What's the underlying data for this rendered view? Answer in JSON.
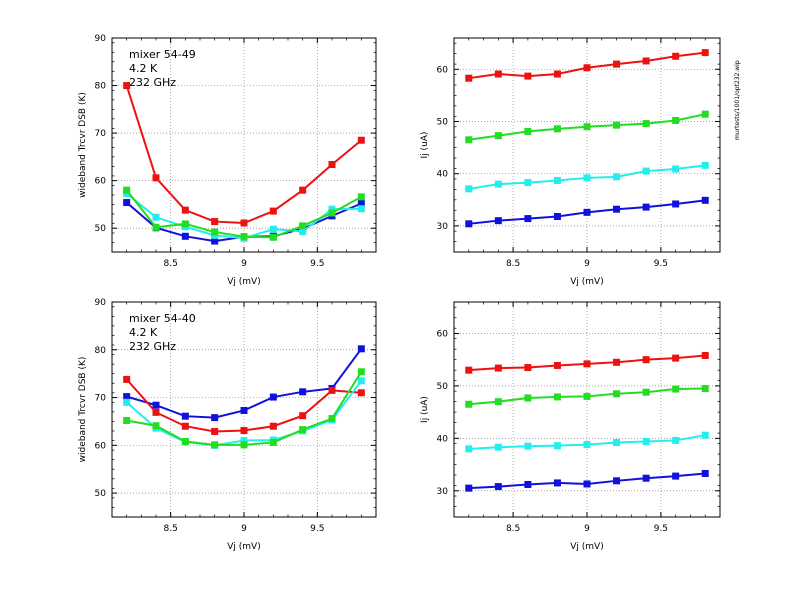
{
  "side_note": "murtests/1001/opt232.wip",
  "colors": {
    "red": "#ee1111",
    "blue": "#1111dd",
    "cyan": "#22eeee",
    "green": "#22dd22"
  },
  "chart_data": [
    {
      "type": "line",
      "annotation": [
        "mixer 54-49",
        "4.2 K",
        "232 GHz"
      ],
      "xlabel": "Vj (mV)",
      "ylabel": "wideband Trcvr DSB (K)",
      "xlim": [
        8.1,
        9.9
      ],
      "ylim": [
        45,
        90
      ],
      "xticks": [
        8.5,
        9,
        9.5
      ],
      "xticklabels": [
        "8.5",
        "9",
        "9.5"
      ],
      "yticks": [
        50,
        60,
        70,
        80,
        90
      ],
      "yticklabels": [
        "50",
        "60",
        "70",
        "80",
        "90"
      ],
      "grid": true,
      "x": [
        8.2,
        8.4,
        8.6,
        8.8,
        9.0,
        9.2,
        9.4,
        9.6,
        9.8
      ],
      "series": [
        {
          "color": "#ee1111",
          "values": [
            80.0,
            60.6,
            53.8,
            51.4,
            51.1,
            53.6,
            58.0,
            63.4,
            68.5
          ]
        },
        {
          "color": "#1111dd",
          "values": [
            55.4,
            50.1,
            48.3,
            47.3,
            48.2,
            48.3,
            49.9,
            52.6,
            55.2
          ]
        },
        {
          "color": "#22eeee",
          "values": [
            57.3,
            52.3,
            50.3,
            48.5,
            47.9,
            49.8,
            49.3,
            54.0,
            54.1
          ]
        },
        {
          "color": "#22dd22",
          "values": [
            58.0,
            50.2,
            50.9,
            49.2,
            48.2,
            48.1,
            50.5,
            53.2,
            56.6
          ]
        }
      ]
    },
    {
      "type": "line",
      "annotation": [],
      "xlabel": "Vj (mV)",
      "ylabel": "Ij (uA)",
      "xlim": [
        8.1,
        9.9
      ],
      "ylim": [
        25,
        66
      ],
      "xticks": [
        8.5,
        9,
        9.5
      ],
      "xticklabels": [
        "8.5",
        "9",
        "9.5"
      ],
      "yticks": [
        30,
        40,
        50,
        60
      ],
      "yticklabels": [
        "30",
        "40",
        "50",
        "60"
      ],
      "grid": true,
      "x": [
        8.2,
        8.4,
        8.6,
        8.8,
        9.0,
        9.2,
        9.4,
        9.6,
        9.8
      ],
      "series": [
        {
          "color": "#ee1111",
          "values": [
            58.3,
            59.1,
            58.7,
            59.1,
            60.3,
            61.0,
            61.6,
            62.5,
            63.2
          ]
        },
        {
          "color": "#22dd22",
          "values": [
            46.5,
            47.3,
            48.1,
            48.6,
            49.0,
            49.3,
            49.6,
            50.2,
            51.4
          ]
        },
        {
          "color": "#22eeee",
          "values": [
            37.1,
            38.0,
            38.3,
            38.7,
            39.2,
            39.4,
            40.5,
            40.9,
            41.6
          ]
        },
        {
          "color": "#1111dd",
          "values": [
            30.4,
            31.0,
            31.4,
            31.8,
            32.6,
            33.2,
            33.6,
            34.2,
            34.9
          ]
        }
      ]
    },
    {
      "type": "line",
      "annotation": [
        "mixer 54-40",
        "4.2 K",
        "232 GHz"
      ],
      "xlabel": "Vj (mV)",
      "ylabel": "wideband Trcvr DSB (K)",
      "xlim": [
        8.1,
        9.9
      ],
      "ylim": [
        45,
        90
      ],
      "xticks": [
        8.5,
        9,
        9.5
      ],
      "xticklabels": [
        "8.5",
        "9",
        "9.5"
      ],
      "yticks": [
        50,
        60,
        70,
        80,
        90
      ],
      "yticklabels": [
        "50",
        "60",
        "70",
        "80",
        "90"
      ],
      "grid": true,
      "x": [
        8.2,
        8.4,
        8.6,
        8.8,
        9.0,
        9.2,
        9.4,
        9.6,
        9.8
      ],
      "series": [
        {
          "color": "#1111dd",
          "values": [
            70.2,
            68.4,
            66.1,
            65.8,
            67.3,
            70.1,
            71.2,
            71.9,
            80.2
          ]
        },
        {
          "color": "#ee1111",
          "values": [
            73.8,
            66.9,
            64.0,
            62.9,
            63.1,
            64.0,
            66.2,
            71.5,
            71.0
          ]
        },
        {
          "color": "#22eeee",
          "values": [
            69.0,
            63.6,
            60.7,
            60.0,
            61.0,
            61.1,
            63.0,
            65.3,
            73.5
          ]
        },
        {
          "color": "#22dd22",
          "values": [
            65.2,
            64.1,
            60.8,
            60.1,
            60.1,
            60.6,
            63.3,
            65.6,
            75.4
          ]
        }
      ]
    },
    {
      "type": "line",
      "annotation": [],
      "xlabel": "Vj (mV)",
      "ylabel": "Ij (uA)",
      "xlim": [
        8.1,
        9.9
      ],
      "ylim": [
        25,
        66
      ],
      "xticks": [
        8.5,
        9,
        9.5
      ],
      "xticklabels": [
        "8.5",
        "9",
        "9.5"
      ],
      "yticks": [
        30,
        40,
        50,
        60
      ],
      "yticklabels": [
        "30",
        "40",
        "50",
        "60"
      ],
      "grid": true,
      "x": [
        8.2,
        8.4,
        8.6,
        8.8,
        9.0,
        9.2,
        9.4,
        9.6,
        9.8
      ],
      "series": [
        {
          "color": "#ee1111",
          "values": [
            53.0,
            53.4,
            53.5,
            53.9,
            54.2,
            54.5,
            55.0,
            55.3,
            55.8
          ]
        },
        {
          "color": "#22dd22",
          "values": [
            46.5,
            47.0,
            47.7,
            47.9,
            48.0,
            48.5,
            48.8,
            49.4,
            49.5
          ]
        },
        {
          "color": "#22eeee",
          "values": [
            38.0,
            38.3,
            38.5,
            38.6,
            38.8,
            39.2,
            39.4,
            39.6,
            40.6
          ]
        },
        {
          "color": "#1111dd",
          "values": [
            30.5,
            30.8,
            31.2,
            31.5,
            31.3,
            31.9,
            32.4,
            32.8,
            33.3
          ]
        }
      ]
    }
  ]
}
